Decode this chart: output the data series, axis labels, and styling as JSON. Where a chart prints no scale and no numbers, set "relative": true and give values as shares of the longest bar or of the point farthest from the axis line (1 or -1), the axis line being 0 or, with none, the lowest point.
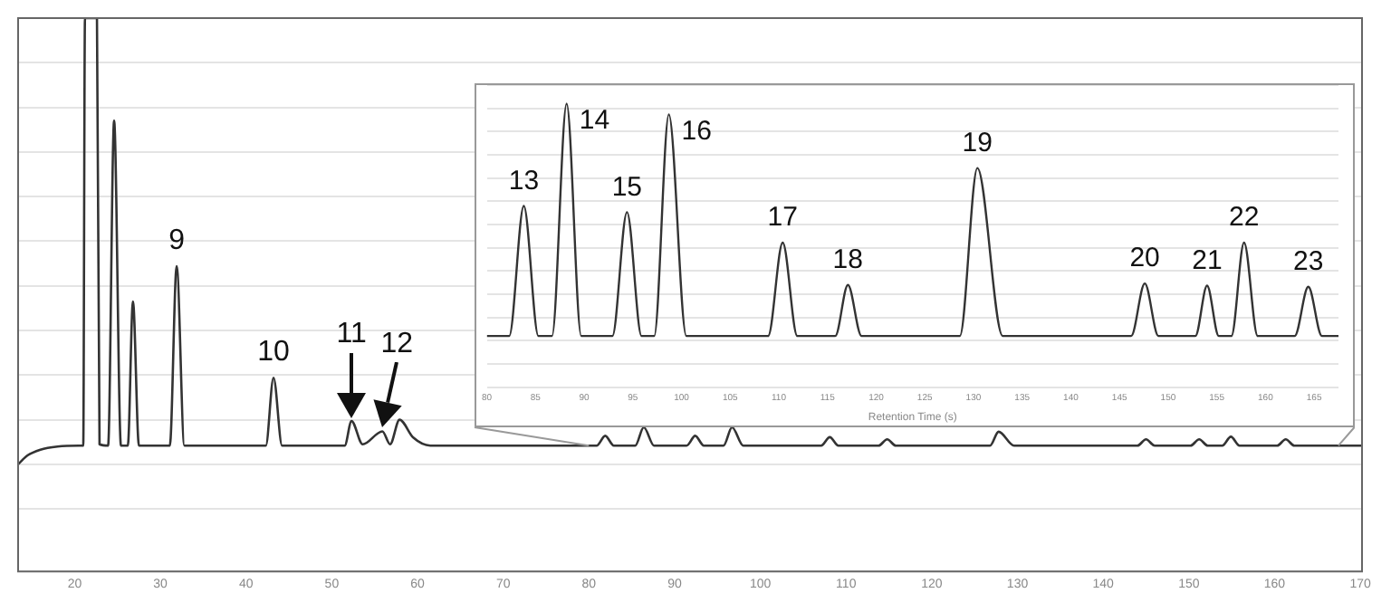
{
  "chart_data": [
    {
      "type": "line",
      "relative": true,
      "grid": "y",
      "legend": false,
      "line_style": "solid",
      "marker": "none",
      "x": [
        13.4,
        14.5,
        16,
        18,
        20.5,
        21.0,
        21.2,
        22.6,
        22.9,
        23.9,
        24.6,
        25.4,
        26.2,
        26.8,
        27.5,
        31.1,
        31.9,
        32.8,
        42.3,
        43.2,
        44.2,
        51.5,
        52.3,
        53.6,
        55.9,
        56.8,
        57.9,
        59.5,
        61.5,
        80.9,
        81.9,
        82.9,
        85.4,
        86.4,
        87.6,
        91.4,
        92.4,
        93.4,
        95.7,
        96.7,
        98.0,
        107.1,
        108.1,
        109.1,
        113.8,
        114.8,
        115.8,
        126.8,
        127.8,
        129.6,
        144.0,
        145.0,
        146.0,
        150.2,
        151.2,
        152.2,
        153.9,
        154.9,
        155.9,
        160.3,
        161.3,
        162.3,
        170.2
      ],
      "series": [
        {
          "color": "#333333",
          "values": [
            0,
            0.02,
            0.033,
            0.04,
            0.042,
            0.042,
            1,
            1,
            0.045,
            0.042,
            0.77,
            0.042,
            0.042,
            0.365,
            0.042,
            0.042,
            0.444,
            0.042,
            0.042,
            0.194,
            0.042,
            0.042,
            0.097,
            0.045,
            0.074,
            0.045,
            0.1,
            0.06,
            0.042,
            0.042,
            0.064,
            0.042,
            0.042,
            0.083,
            0.042,
            0.042,
            0.064,
            0.042,
            0.042,
            0.083,
            0.042,
            0.042,
            0.061,
            0.042,
            0.042,
            0.056,
            0.042,
            0.042,
            0.073,
            0.042,
            0.042,
            0.056,
            0.042,
            0.042,
            0.056,
            0.042,
            0.042,
            0.062,
            0.042,
            0.042,
            0.056,
            0.042,
            0.042
          ]
        }
      ],
      "xlim": [
        13.4,
        170.2
      ],
      "xticks": [
        20,
        30,
        40,
        50,
        60,
        70,
        80,
        90,
        100,
        110,
        120,
        130,
        140,
        150,
        160,
        170
      ],
      "annotations": [
        {
          "text": "9",
          "x": 31.9,
          "y": 0.444
        },
        {
          "text": "10",
          "x": 43.2,
          "y": 0.194
        },
        {
          "text": "11",
          "x": 52.3,
          "y": 0.097
        },
        {
          "text": "12",
          "x": 55.9,
          "y": 0.074
        }
      ]
    },
    {
      "type": "line",
      "relative": true,
      "grid": "y",
      "legend": false,
      "line_style": "solid",
      "marker": "none",
      "xlabel": "Retention Time (s)",
      "x": [
        80,
        82.3,
        83.8,
        85.3,
        86.7,
        88.2,
        89.7,
        92.9,
        94.4,
        95.9,
        97.2,
        98.7,
        100.5,
        108.9,
        110.4,
        111.9,
        115.8,
        117.1,
        118.5,
        128.6,
        130.4,
        133,
        146.2,
        147.6,
        149,
        152.8,
        154,
        155.2,
        156.5,
        157.8,
        159.2,
        163,
        164.4,
        165.8,
        167.5
      ],
      "series": [
        {
          "color": "#333333",
          "values": [
            0,
            0,
            0.56,
            0,
            0,
            1,
            0,
            0,
            0.533,
            0,
            0,
            0.954,
            0,
            0,
            0.402,
            0,
            0,
            0.22,
            0,
            0,
            0.723,
            0,
            0,
            0.226,
            0,
            0,
            0.217,
            0,
            0,
            0.402,
            0,
            0,
            0.212,
            0,
            0
          ]
        }
      ],
      "xlim": [
        80,
        167.5
      ],
      "xticks": [
        80,
        85,
        90,
        95,
        100,
        105,
        110,
        115,
        120,
        125,
        130,
        135,
        140,
        145,
        150,
        155,
        160,
        165
      ],
      "annotations": [
        {
          "text": "13",
          "x": 83.8,
          "y": 0.56
        },
        {
          "text": "14",
          "x": 88.2,
          "y": 1
        },
        {
          "text": "15",
          "x": 94.4,
          "y": 0.533
        },
        {
          "text": "16",
          "x": 98.7,
          "y": 0.954
        },
        {
          "text": "17",
          "x": 110.4,
          "y": 0.402
        },
        {
          "text": "18",
          "x": 117.1,
          "y": 0.22
        },
        {
          "text": "19",
          "x": 130.4,
          "y": 0.723
        },
        {
          "text": "20",
          "x": 147.6,
          "y": 0.226
        },
        {
          "text": "21",
          "x": 154,
          "y": 0.217
        },
        {
          "text": "22",
          "x": 157.8,
          "y": 0.402
        },
        {
          "text": "23",
          "x": 164.4,
          "y": 0.212
        }
      ]
    }
  ]
}
